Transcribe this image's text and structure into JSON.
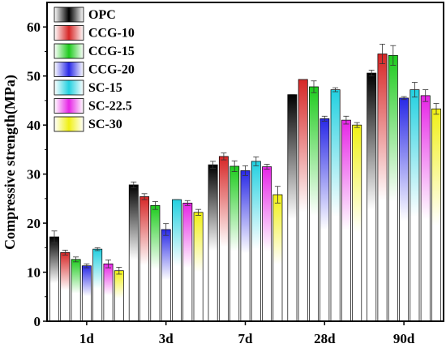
{
  "chart_data": {
    "type": "bar",
    "title": "",
    "xlabel": "",
    "ylabel": "Compressive strength(MPa)",
    "ylim": [
      0,
      65
    ],
    "yticks": [
      0,
      10,
      20,
      30,
      40,
      50,
      60
    ],
    "grid": false,
    "legend_position": "top-left",
    "categories": [
      "1d",
      "3d",
      "7d",
      "28d",
      "90d"
    ],
    "series": [
      {
        "name": "OPC",
        "color": "#000000",
        "values": [
          17.2,
          27.8,
          31.9,
          46.2,
          50.6
        ],
        "errors": [
          1.2,
          0.6,
          0.7,
          0.0,
          0.6
        ]
      },
      {
        "name": "CCG-10",
        "color": "#d62626",
        "values": [
          14.0,
          25.4,
          33.6,
          49.3,
          54.5
        ],
        "errors": [
          0.5,
          0.6,
          0.7,
          0.0,
          2.0
        ]
      },
      {
        "name": "CCG-15",
        "color": "#1ecb1e",
        "values": [
          12.6,
          23.6,
          31.6,
          47.8,
          54.2
        ],
        "errors": [
          0.5,
          0.8,
          1.1,
          1.2,
          2.0
        ]
      },
      {
        "name": "CCG-20",
        "color": "#2828e6",
        "values": [
          11.3,
          18.7,
          30.7,
          41.3,
          45.5
        ],
        "errors": [
          0.4,
          1.2,
          1.0,
          0.5,
          0.3
        ]
      },
      {
        "name": "SC-15",
        "color": "#22d0e0",
        "values": [
          14.7,
          24.8,
          32.6,
          47.2,
          47.2
        ],
        "errors": [
          0.3,
          0.0,
          0.9,
          0.4,
          1.5
        ]
      },
      {
        "name": "SC-22.5",
        "color": "#e625e6",
        "values": [
          11.7,
          24.1,
          31.5,
          41.0,
          46.0
        ],
        "errors": [
          0.8,
          0.5,
          0.5,
          0.8,
          1.2
        ]
      },
      {
        "name": "SC-30",
        "color": "#f0f014",
        "values": [
          10.3,
          22.2,
          25.8,
          40.0,
          43.3
        ],
        "errors": [
          0.7,
          0.6,
          1.7,
          0.5,
          1.1
        ]
      }
    ]
  }
}
